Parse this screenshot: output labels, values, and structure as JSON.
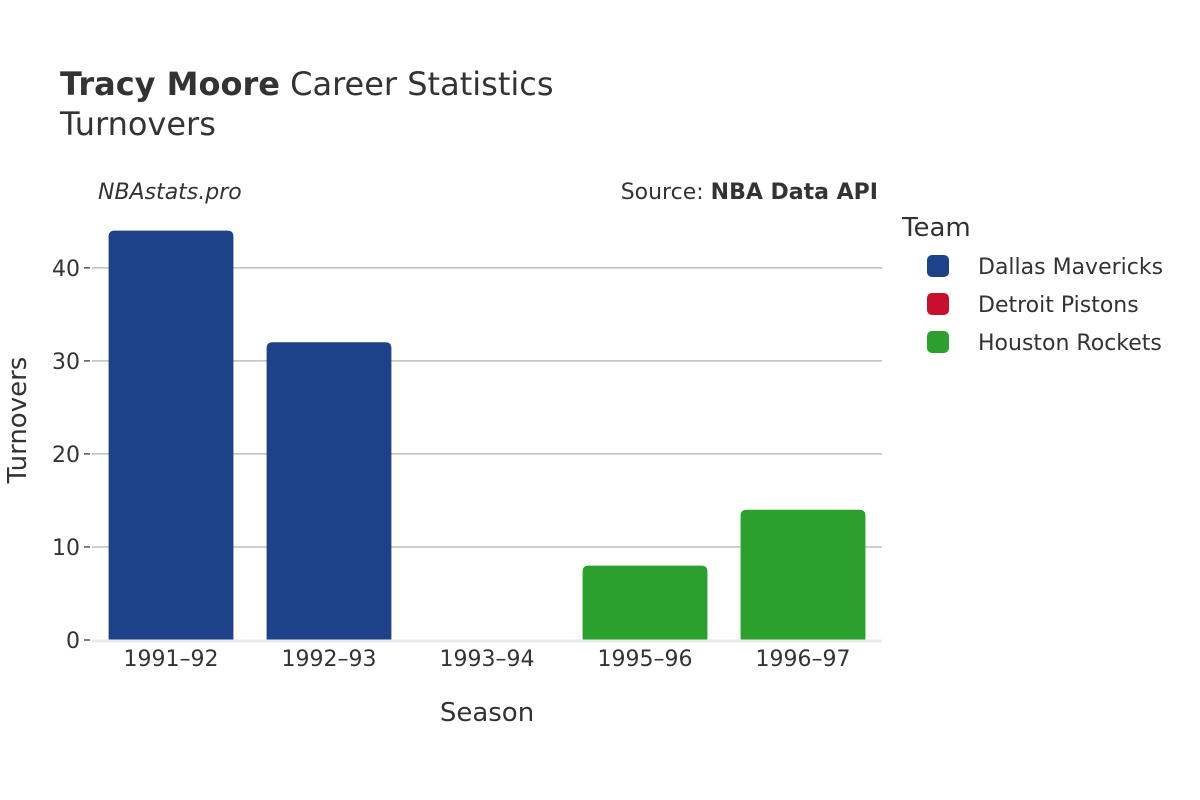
{
  "header": {
    "player_name": "Tracy Moore",
    "title_rest": "Career Statistics",
    "subtitle": "Turnovers"
  },
  "credits": {
    "site": "NBAstats.pro",
    "source_prefix": "Source: ",
    "source_name": "NBA Data API"
  },
  "legend": {
    "title": "Team",
    "position": "right"
  },
  "colors": {
    "Dallas Mavericks": "#1d428a",
    "Detroit Pistons": "#c8102e",
    "Houston Rockets": "#2ca02c"
  },
  "chart_data": {
    "type": "bar",
    "xlabel": "Season",
    "ylabel": "Turnovers",
    "ylim": [
      0,
      46
    ],
    "yticks": [
      0,
      10,
      20,
      30,
      40
    ],
    "grid": true,
    "categories": [
      "1991–92",
      "1992–93",
      "1993–94",
      "1995–96",
      "1996–97"
    ],
    "series": [
      {
        "name": "Dallas Mavericks",
        "values": [
          44,
          32,
          null,
          null,
          null
        ]
      },
      {
        "name": "Detroit Pistons",
        "values": [
          null,
          null,
          0,
          null,
          null
        ]
      },
      {
        "name": "Houston Rockets",
        "values": [
          null,
          null,
          null,
          8,
          14
        ]
      }
    ]
  }
}
